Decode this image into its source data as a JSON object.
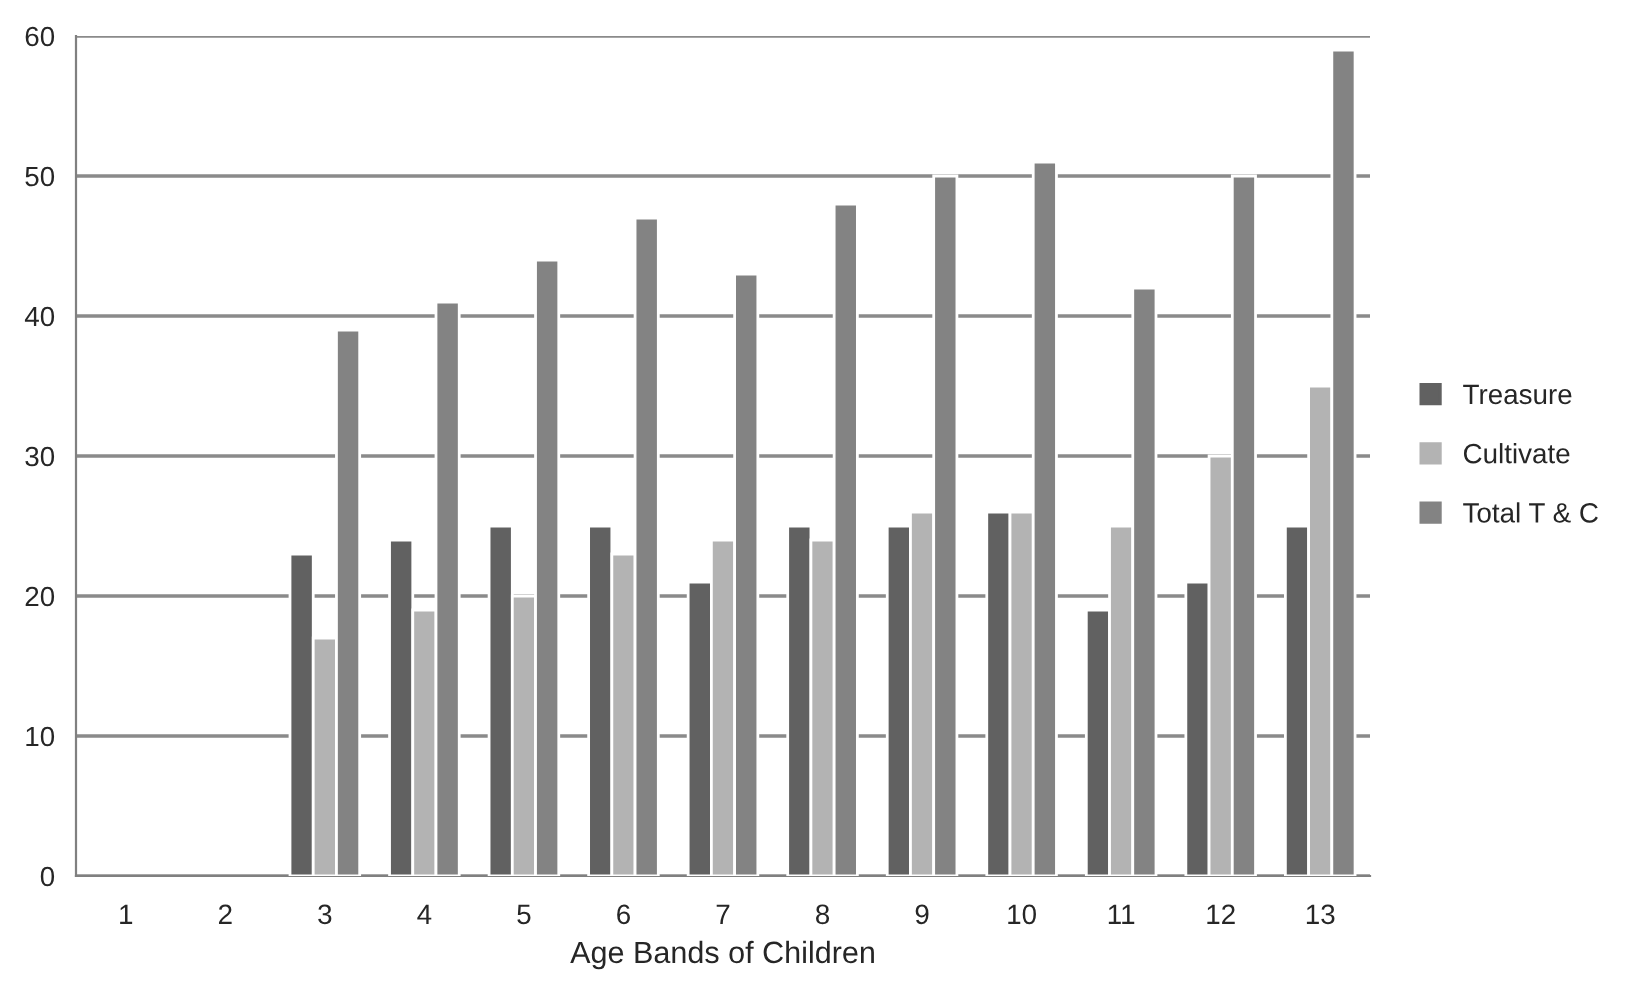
{
  "chart_data": {
    "type": "bar",
    "xlabel": "Age Bands of Children",
    "categories": [
      "1",
      "2",
      "3",
      "4",
      "5",
      "6",
      "7",
      "8",
      "9",
      "10",
      "11",
      "12",
      "13"
    ],
    "series": [
      {
        "name": "Treasure",
        "color": "#616161",
        "values": [
          null,
          null,
          23,
          24,
          25,
          25,
          21,
          25,
          25,
          26,
          19,
          21,
          25
        ]
      },
      {
        "name": "Cultivate",
        "color": "#b3b3b3",
        "values": [
          null,
          null,
          17,
          19,
          20,
          23,
          24,
          24,
          26,
          26,
          25,
          30,
          35
        ]
      },
      {
        "name": "Total T & C",
        "color": "#838383",
        "values": [
          null,
          null,
          39,
          41,
          44,
          47,
          43,
          48,
          50,
          51,
          42,
          50,
          59
        ]
      }
    ],
    "ylim": [
      0,
      60
    ],
    "yticks": [
      0,
      10,
      20,
      30,
      40,
      50,
      60
    ],
    "grid": "y",
    "legend": "right"
  }
}
